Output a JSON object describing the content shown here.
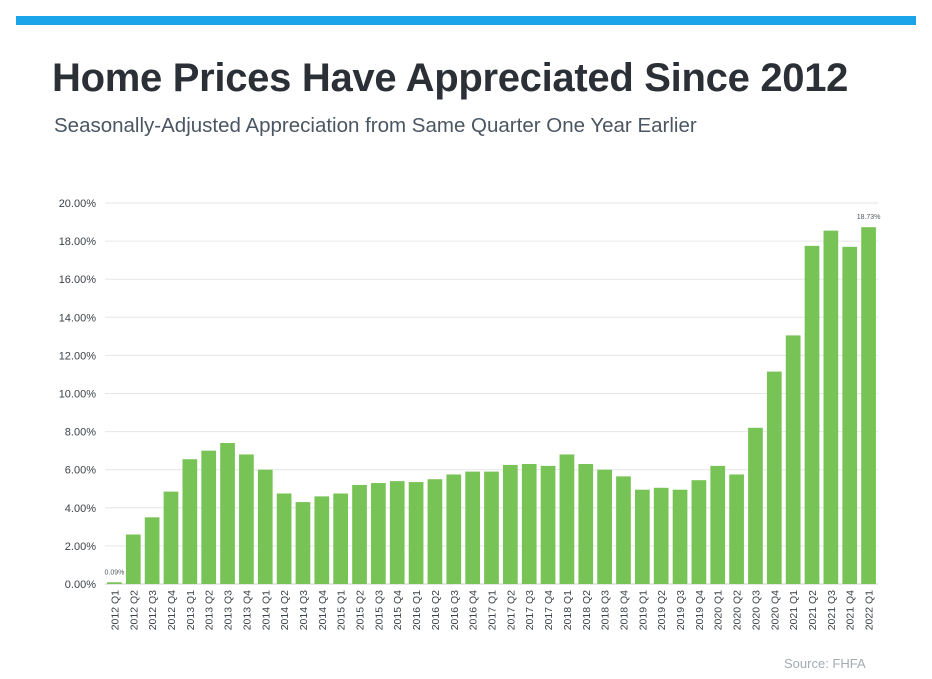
{
  "header": {
    "title": "Home Prices Have Appreciated Since 2012",
    "subtitle": "Seasonally-Adjusted Appreciation from Same Quarter One Year Earlier"
  },
  "footer": {
    "source": "Source: FHFA"
  },
  "colors": {
    "accent_bar": "#1aa4ea",
    "bar": "#78c356",
    "title": "#2b2f36",
    "grid": "#e6e6e6"
  },
  "chart_data": {
    "type": "bar",
    "title": "Home Prices Have Appreciated Since 2012",
    "subtitle": "Seasonally-Adjusted Appreciation from Same Quarter One Year Earlier",
    "xlabel": "",
    "ylabel": "",
    "ylim": [
      0,
      20
    ],
    "y_ticks": [
      "0.00%",
      "2.00%",
      "4.00%",
      "6.00%",
      "8.00%",
      "10.00%",
      "12.00%",
      "14.00%",
      "16.00%",
      "18.00%",
      "20.00%"
    ],
    "grid": true,
    "legend": "none",
    "categories": [
      "2012 Q1",
      "2012 Q2",
      "2012 Q3",
      "2012 Q4",
      "2013 Q1",
      "2013 Q2",
      "2013 Q3",
      "2013 Q4",
      "2014 Q1",
      "2014 Q2",
      "2014 Q3",
      "2014 Q4",
      "2015 Q1",
      "2015 Q2",
      "2015 Q3",
      "2015 Q4",
      "2016 Q1",
      "2016 Q2",
      "2016 Q3",
      "2016 Q4",
      "2017 Q1",
      "2017 Q2",
      "2017 Q3",
      "2017 Q4",
      "2018 Q1",
      "2018 Q2",
      "2018 Q3",
      "2018 Q4",
      "2019 Q1",
      "2019 Q2",
      "2019 Q3",
      "2019 Q4",
      "2020 Q1",
      "2020 Q2",
      "2020 Q3",
      "2020 Q4",
      "2021 Q1",
      "2021 Q2",
      "2021 Q3",
      "2021 Q4",
      "2022 Q1"
    ],
    "values": [
      0.09,
      2.6,
      3.5,
      4.85,
      6.55,
      7.0,
      7.4,
      6.8,
      6.0,
      4.75,
      4.3,
      4.6,
      4.75,
      5.2,
      5.3,
      5.4,
      5.35,
      5.5,
      5.75,
      5.9,
      5.9,
      6.25,
      6.3,
      6.2,
      6.8,
      6.3,
      6.0,
      5.65,
      4.95,
      5.05,
      4.95,
      5.45,
      6.2,
      5.75,
      8.2,
      11.15,
      13.05,
      17.75,
      18.55,
      17.7,
      18.73
    ],
    "data_labels": [
      {
        "category": "2012 Q1",
        "text": "0.09%"
      },
      {
        "category": "2022 Q1",
        "text": "18.73%"
      }
    ]
  }
}
